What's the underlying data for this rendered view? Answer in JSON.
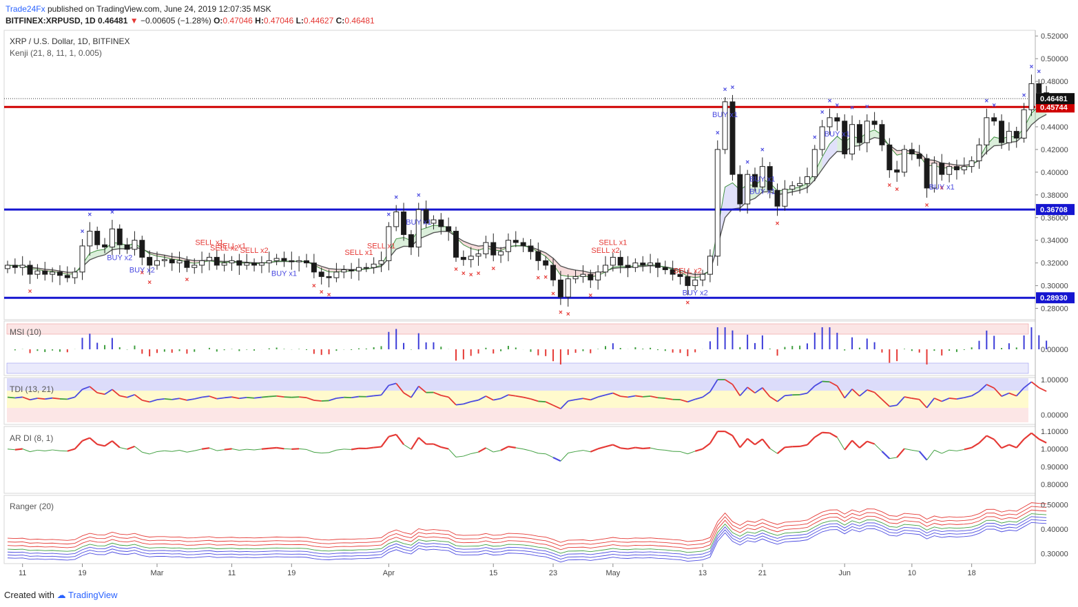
{
  "header": {
    "publisher": "Trade24Fx",
    "published_text": "published on TradingView.com, June 24, 2019 12:07:35 MSK",
    "symbol": "BITFINEX:XRPUSD, 1D",
    "last": "0.46481",
    "change_arrow": "▼",
    "change": "−0.00605 (−1.28%)",
    "o_label": "O:",
    "o": "0.47046",
    "h_label": "H:",
    "h": "0.47046",
    "l_label": "L:",
    "l": "0.44627",
    "c_label": "C:",
    "c": "0.46481"
  },
  "legend": {
    "title": "XRP / U.S. Dollar, 1D, BITFINEX",
    "indicator": "Kenji (21, 8, 11, 1, 0.005)"
  },
  "panes": {
    "msi": "MSI (10)",
    "tdi": "TDI (13, 21)",
    "ardi": "AR DI (8, 1)",
    "ranger": "Ranger (20)"
  },
  "footer": {
    "created_with": "Created with",
    "brand": "TradingView"
  },
  "colors": {
    "up": "#ffffff",
    "down": "#1a1a1a",
    "support": "#1515d0",
    "resistance": "#d00000",
    "buy": "#4a4ae0",
    "sell": "#e53935",
    "kenji_green": "#3f8f3f",
    "kenji_line": "#555555"
  },
  "chart_data": [
    {
      "type": "candlestick",
      "title": "XRP / U.S. Dollar, 1D, BITFINEX",
      "ylim": [
        0.27,
        0.525
      ],
      "y_ticks": [
        "0.28000",
        "0.30000",
        "0.32000",
        "0.34000",
        "0.36000",
        "0.38000",
        "0.40000",
        "0.42000",
        "0.44000",
        "0.46000",
        "0.48000",
        "0.50000",
        "0.52000"
      ],
      "x_ticks": [
        {
          "label": "11",
          "i": 2
        },
        {
          "label": "19",
          "i": 10
        },
        {
          "label": "Mar",
          "i": 20
        },
        {
          "label": "11",
          "i": 30
        },
        {
          "label": "19",
          "i": 38
        },
        {
          "label": "Apr",
          "i": 51
        },
        {
          "label": "15",
          "i": 65
        },
        {
          "label": "23",
          "i": 73
        },
        {
          "label": "May",
          "i": 81
        },
        {
          "label": "13",
          "i": 93
        },
        {
          "label": "21",
          "i": 101
        },
        {
          "label": "Jun",
          "i": 112
        },
        {
          "label": "10",
          "i": 121
        },
        {
          "label": "18",
          "i": 129
        }
      ],
      "horizontal_levels": [
        {
          "value": 0.45744,
          "label": "0.45744",
          "color": "#d00000"
        },
        {
          "value": 0.36708,
          "label": "0.36708",
          "color": "#1515d0"
        },
        {
          "value": 0.2893,
          "label": "0.28930",
          "color": "#1515d0"
        }
      ],
      "last_price": {
        "value": 0.46481,
        "label": "0.46481"
      },
      "close": [
        0.318,
        0.316,
        0.318,
        0.31,
        0.313,
        0.31,
        0.312,
        0.309,
        0.307,
        0.312,
        0.335,
        0.348,
        0.336,
        0.334,
        0.35,
        0.336,
        0.332,
        0.34,
        0.325,
        0.318,
        0.322,
        0.323,
        0.32,
        0.322,
        0.316,
        0.318,
        0.322,
        0.325,
        0.318,
        0.32,
        0.322,
        0.318,
        0.32,
        0.318,
        0.32,
        0.322,
        0.324,
        0.322,
        0.321,
        0.322,
        0.32,
        0.312,
        0.308,
        0.307,
        0.312,
        0.314,
        0.313,
        0.316,
        0.316,
        0.319,
        0.322,
        0.352,
        0.365,
        0.345,
        0.334,
        0.367,
        0.355,
        0.358,
        0.352,
        0.348,
        0.325,
        0.323,
        0.326,
        0.328,
        0.338,
        0.327,
        0.33,
        0.34,
        0.338,
        0.335,
        0.33,
        0.322,
        0.318,
        0.305,
        0.29,
        0.306,
        0.308,
        0.31,
        0.305,
        0.312,
        0.318,
        0.325,
        0.318,
        0.316,
        0.32,
        0.318,
        0.32,
        0.316,
        0.314,
        0.31,
        0.308,
        0.3,
        0.305,
        0.31,
        0.326,
        0.42,
        0.462,
        0.398,
        0.372,
        0.398,
        0.387,
        0.405,
        0.384,
        0.37,
        0.385,
        0.388,
        0.39,
        0.396,
        0.42,
        0.44,
        0.448,
        0.445,
        0.416,
        0.442,
        0.426,
        0.445,
        0.442,
        0.424,
        0.402,
        0.4,
        0.42,
        0.416,
        0.412,
        0.386,
        0.408,
        0.398,
        0.405,
        0.402,
        0.405,
        0.41,
        0.424,
        0.448,
        0.445,
        0.426,
        0.436,
        0.43,
        0.455,
        0.478,
        0.47,
        0.4648
      ],
      "notes": "Kenji cloud, BUY/SELL signal markers and volatility indicators are drawn from the same close series"
    },
    {
      "type": "bar",
      "title": "MSI (10)",
      "y_ticks": [
        "0.00000"
      ]
    },
    {
      "type": "line",
      "title": "TDI (13, 21)",
      "y_ticks": [
        "0.00000",
        "1.00000"
      ]
    },
    {
      "type": "line",
      "title": "AR DI (8, 1)",
      "y_ticks": [
        "0.80000",
        "0.90000",
        "1.00000",
        "1.10000"
      ]
    },
    {
      "type": "line",
      "title": "Ranger (20)",
      "y_ticks": [
        "0.30000",
        "0.40000",
        "0.50000"
      ]
    }
  ],
  "signals": [
    {
      "label": "BUY x2",
      "i": 15,
      "dir": "buy"
    },
    {
      "label": "BUY x2",
      "i": 18,
      "dir": "buy"
    },
    {
      "label": "BUY x1",
      "i": 37,
      "dir": "buy"
    },
    {
      "label": "BUY x1",
      "i": 55,
      "dir": "buy"
    },
    {
      "label": "BUY x2",
      "i": 92,
      "dir": "buy"
    },
    {
      "label": "BUY x1",
      "i": 96,
      "dir": "buy"
    },
    {
      "label": "BUY x1",
      "i": 101,
      "dir": "buy"
    },
    {
      "label": "BUY x1",
      "i": 101,
      "dir": "buy2"
    },
    {
      "label": "BUY x1",
      "i": 111,
      "dir": "buy"
    },
    {
      "label": "BUY x1",
      "i": 125,
      "dir": "buy"
    },
    {
      "label": "SELL x1",
      "i": 27,
      "dir": "sell"
    },
    {
      "label": "SELL x2",
      "i": 29,
      "dir": "sell"
    },
    {
      "label": "SELL x1",
      "i": 30,
      "dir": "sell"
    },
    {
      "label": "SELL x2",
      "i": 33,
      "dir": "sell"
    },
    {
      "label": "SELL x1",
      "i": 47,
      "dir": "sell"
    },
    {
      "label": "SELL x1",
      "i": 50,
      "dir": "sell"
    },
    {
      "label": "SELL x2",
      "i": 80,
      "dir": "sell"
    },
    {
      "label": "SELL x1",
      "i": 81,
      "dir": "sell"
    },
    {
      "label": "SELL x2",
      "i": 91,
      "dir": "sell"
    }
  ]
}
